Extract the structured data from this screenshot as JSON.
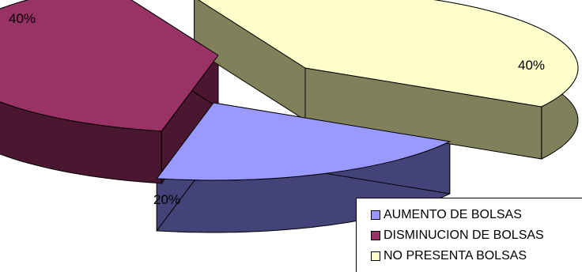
{
  "chart_data": {
    "type": "pie",
    "style": "3d-exploded",
    "categories": [
      "AUMENTO DE BOLSAS",
      "DISMINUCION DE BOLSAS",
      "NO PRESENTA BOLSAS"
    ],
    "values": [
      20,
      40,
      40
    ],
    "data_labels": [
      "20%",
      "40%",
      "40%"
    ],
    "colors": [
      "#9999FF",
      "#993366",
      "#FFFFCC"
    ],
    "side_colors": [
      "#43437A",
      "#4A1630",
      "#80805A"
    ],
    "title": "",
    "legend_position": "bottom-right"
  }
}
